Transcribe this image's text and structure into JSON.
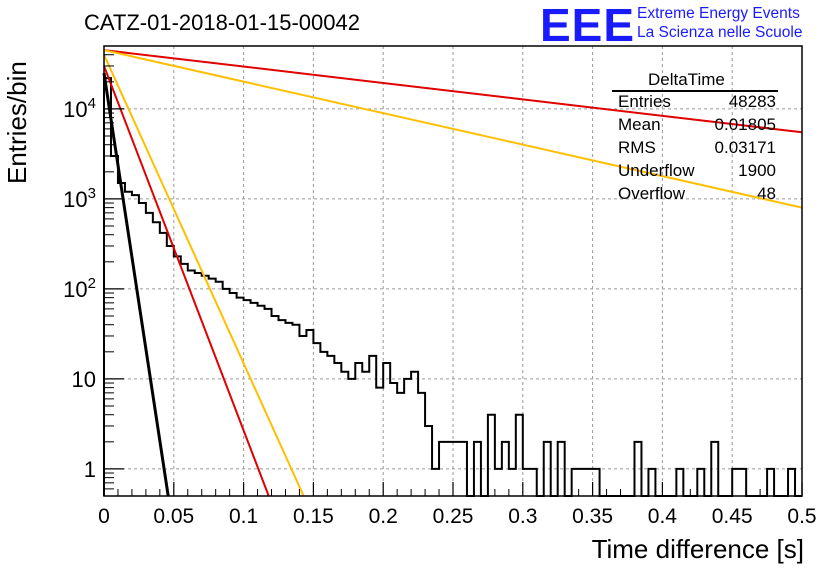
{
  "chart_title": "CATZ-01-2018-01-15-00042",
  "logo": {
    "letters": "EEE",
    "line1": "Extreme Energy Events",
    "line2": "La Scienza nelle Scuole",
    "color": "#1a1aff"
  },
  "stats_box": {
    "title": "DeltaTime",
    "rows": [
      {
        "key": "Entries",
        "value": "48283"
      },
      {
        "key": "Mean",
        "value": "0.01805"
      },
      {
        "key": "RMS",
        "value": "0.03171"
      },
      {
        "key": "Underflow",
        "value": "1900"
      },
      {
        "key": "Overflow",
        "value": "48"
      }
    ]
  },
  "chart_data": {
    "type": "line",
    "xlabel": "Time difference [s]",
    "ylabel": "Entries/bin",
    "xlim": [
      0,
      0.5
    ],
    "ylim": [
      0.5,
      50000
    ],
    "yscale": "log",
    "grid": true,
    "x_ticks": [
      "0",
      "0.05",
      "0.1",
      "0.15",
      "0.2",
      "0.25",
      "0.3",
      "0.35",
      "0.4",
      "0.45",
      "0.5"
    ],
    "y_ticks": [
      {
        "value": 1,
        "label": "1"
      },
      {
        "value": 10,
        "label": "10"
      },
      {
        "value": 100,
        "label": "10^2"
      },
      {
        "value": 1000,
        "label": "10^3"
      },
      {
        "value": 10000,
        "label": "10^4"
      }
    ],
    "histogram": {
      "bin_width": 0.005,
      "color": "#000000",
      "values": [
        22000,
        3000,
        1500,
        1200,
        1100,
        900,
        700,
        550,
        420,
        300,
        230,
        190,
        160,
        150,
        140,
        130,
        120,
        100,
        90,
        80,
        75,
        70,
        65,
        60,
        50,
        45,
        42,
        40,
        30,
        35,
        25,
        20,
        18,
        15,
        12,
        10,
        15,
        12,
        18,
        8,
        15,
        9,
        7,
        10,
        12,
        7,
        3,
        1,
        2,
        2,
        2,
        2,
        0,
        2,
        0,
        4,
        1,
        2,
        1,
        4,
        1,
        1,
        0,
        2,
        0,
        2,
        0,
        1,
        1,
        1,
        1,
        0,
        0,
        0,
        0,
        0,
        2,
        0,
        1,
        0,
        0,
        0,
        1,
        0,
        0,
        1,
        0,
        2,
        0,
        0,
        1,
        1,
        0,
        0,
        0,
        1,
        0,
        0,
        1,
        0
      ]
    },
    "series": [
      {
        "color": "#000000",
        "x": [
          0.0,
          0.046
        ],
        "y": [
          25000,
          0.5
        ]
      },
      {
        "color": "#e00000",
        "x": [
          0.0,
          0.118
        ],
        "y": [
          30000,
          0.5
        ]
      },
      {
        "color": "#ffbf00",
        "x": [
          0.0,
          0.143
        ],
        "y": [
          40000,
          0.5
        ]
      },
      {
        "color": "#e00000",
        "x": [
          0.0,
          0.5
        ],
        "y": [
          45000,
          5500
        ]
      },
      {
        "color": "#ffbf00",
        "x": [
          0.0,
          0.5
        ],
        "y": [
          45000,
          800
        ]
      }
    ]
  }
}
